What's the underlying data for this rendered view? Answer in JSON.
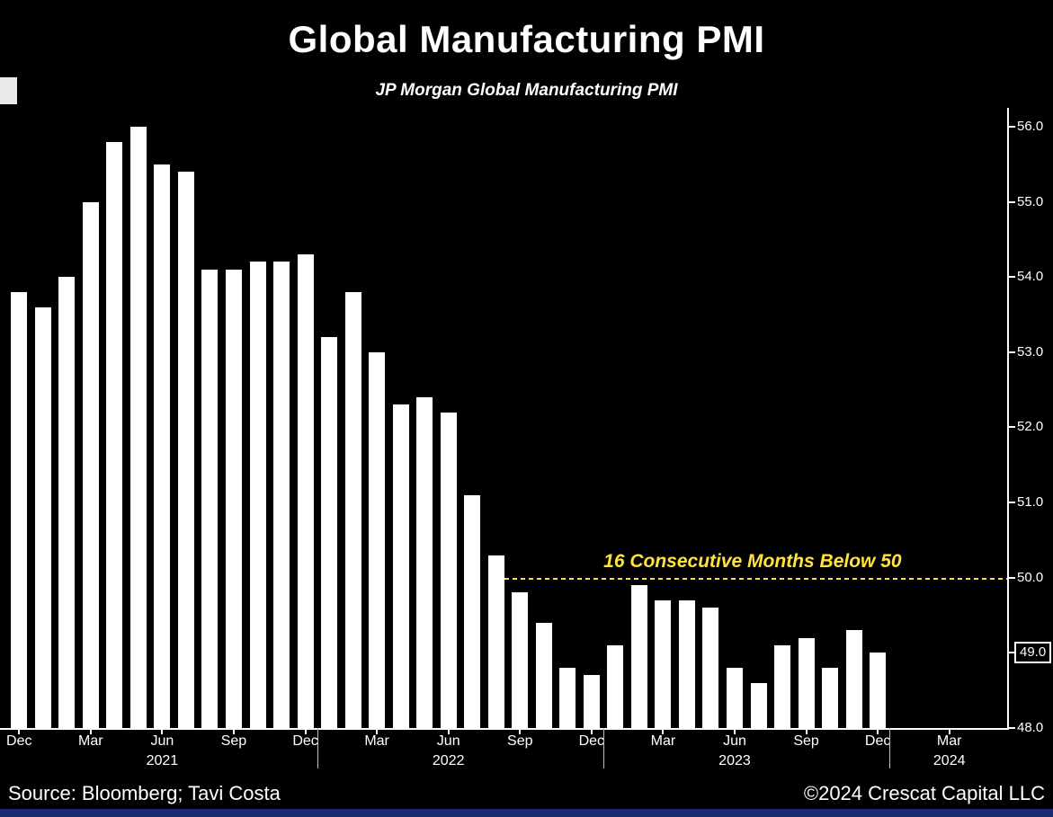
{
  "title": "Global Manufacturing PMI",
  "subtitle": "JP Morgan Global Manufacturing PMI",
  "footer": {
    "source": "Source: Bloomberg; Tavi Costa",
    "copyright": "©2024 Crescat Capital LLC"
  },
  "colors": {
    "background": "#000000",
    "bar": "#ffffff",
    "axis": "#ffffff",
    "annotation_yellow": "#ffe33d",
    "bottom_strip_blue": "#1b2a6e"
  },
  "chart_data": {
    "type": "bar",
    "title": "Global Manufacturing PMI",
    "subtitle": "JP Morgan Global Manufacturing PMI",
    "xlabel": "",
    "ylabel": "",
    "ylim": [
      48.0,
      56.25
    ],
    "grid": false,
    "legend_position": "none",
    "bar_color": "#ffffff",
    "x": [
      "Dec 2020",
      "Jan 2021",
      "Feb 2021",
      "Mar 2021",
      "Apr 2021",
      "May 2021",
      "Jun 2021",
      "Jul 2021",
      "Aug 2021",
      "Sep 2021",
      "Oct 2021",
      "Nov 2021",
      "Dec 2021",
      "Jan 2022",
      "Feb 2022",
      "Mar 2022",
      "Apr 2022",
      "May 2022",
      "Jun 2022",
      "Jul 2022",
      "Aug 2022",
      "Sep 2022",
      "Oct 2022",
      "Nov 2022",
      "Dec 2022",
      "Jan 2023",
      "Feb 2023",
      "Mar 2023",
      "Apr 2023",
      "May 2023",
      "Jun 2023",
      "Jul 2023",
      "Aug 2023",
      "Sep 2023",
      "Oct 2023",
      "Nov 2023",
      "Dec 2023"
    ],
    "values": [
      53.8,
      53.6,
      54.0,
      55.0,
      55.8,
      56.0,
      55.5,
      55.4,
      54.1,
      54.1,
      54.2,
      54.2,
      54.3,
      53.2,
      53.8,
      53.0,
      52.3,
      52.4,
      52.2,
      51.1,
      50.3,
      49.8,
      49.4,
      48.8,
      48.7,
      49.1,
      49.9,
      49.7,
      49.7,
      49.6,
      48.8,
      48.6,
      49.1,
      49.2,
      48.8,
      49.3,
      49.0
    ],
    "y_ticks": [
      56.0,
      55.0,
      54.0,
      53.0,
      52.0,
      51.0,
      50.0,
      49.0,
      48.0
    ],
    "highlighted_y_tick": "49.0",
    "x_axis_slots": 42,
    "x_ticks": [
      {
        "label": "Dec",
        "index": 0
      },
      {
        "label": "Mar",
        "index": 3
      },
      {
        "label": "Jun",
        "index": 6
      },
      {
        "label": "Sep",
        "index": 9
      },
      {
        "label": "Dec",
        "index": 12
      },
      {
        "label": "Mar",
        "index": 15
      },
      {
        "label": "Jun",
        "index": 18
      },
      {
        "label": "Sep",
        "index": 21
      },
      {
        "label": "Dec",
        "index": 24
      },
      {
        "label": "Mar",
        "index": 27
      },
      {
        "label": "Jun",
        "index": 30
      },
      {
        "label": "Sep",
        "index": 33
      },
      {
        "label": "Dec",
        "index": 36
      },
      {
        "label": "Mar",
        "index": 39
      }
    ],
    "year_labels": [
      {
        "label": "2021",
        "index": 6
      },
      {
        "label": "2022",
        "index": 18
      },
      {
        "label": "2023",
        "index": 30
      },
      {
        "label": "2024",
        "index": 39
      }
    ],
    "year_divider_after_index": [
      12,
      24,
      36
    ],
    "annotation": {
      "text": "16 Consecutive Months Below 50",
      "line_value": 50.0,
      "color": "#ffe33d",
      "start_slot": 20.5
    }
  }
}
